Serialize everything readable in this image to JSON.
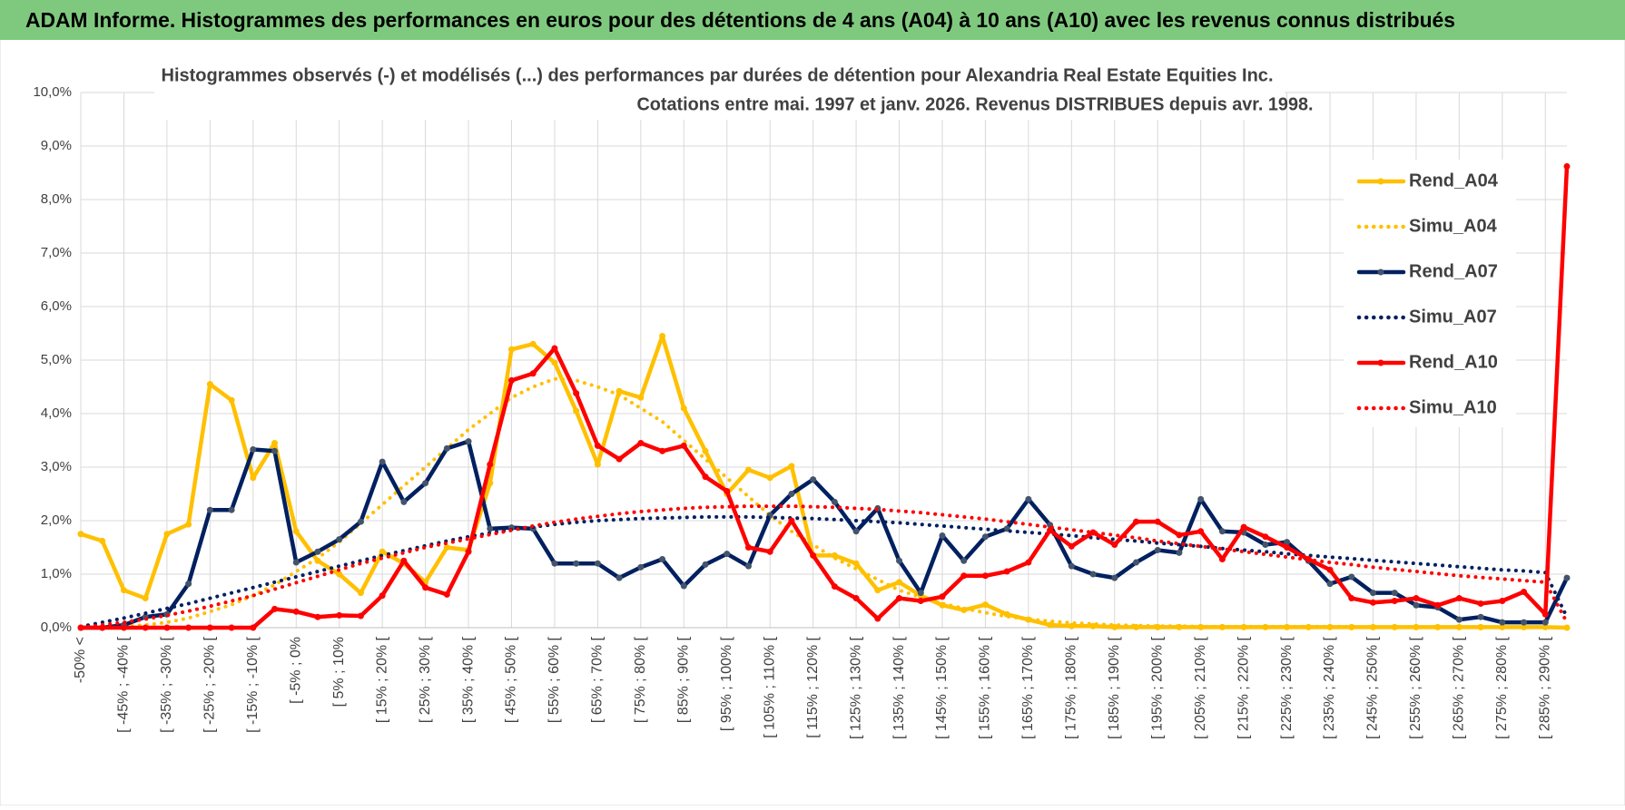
{
  "header": {
    "title": "ADAM Informe. Histogrammes des performances en euros pour des détentions de 4 ans (A04) à 10 ans (A10) avec les revenus connus distribués"
  },
  "chart_data": {
    "type": "line",
    "title": "Histogrammes observés (-) et modélisés (...) des performances par durées de détention pour Alexandria Real Estate Equities Inc.",
    "subtitle": "Cotations entre mai. 1997 et janv. 2026. Revenus DISTRIBUES depuis avr. 1998.",
    "categories": [
      "-50% <",
      null,
      "[ -45% ; -40% [",
      null,
      "[ -35% ; -30% [",
      null,
      "[ -25% ; -20% [",
      null,
      "[ -15% ; -10% [",
      null,
      "[ -5% ; 0%",
      null,
      "[ 5% ; 10%",
      null,
      "[ 15% ; 20% [",
      null,
      "[ 25% ; 30% [",
      null,
      "[ 35% ; 40% [",
      null,
      "[ 45% ; 50% [",
      null,
      "[ 55% ; 60% [",
      null,
      "[ 65% ; 70% [",
      null,
      "[ 75% ; 80% [",
      null,
      "[ 85% ; 90% [",
      null,
      "[ 95% ; 100% [",
      null,
      "[ 105% ; 110% [",
      null,
      "[ 115% ; 120% [",
      null,
      "[ 125% ; 130% [",
      null,
      "[ 135% ; 140% [",
      null,
      "[ 145% ; 150% [",
      null,
      "[ 155% ; 160% [",
      null,
      "[ 165% ; 170% [",
      null,
      "[ 175% ; 180% [",
      null,
      "[ 185% ; 190% [",
      null,
      "[ 195% ; 200% [",
      null,
      "[ 205% ; 210% [",
      null,
      "[ 215% ; 220% [",
      null,
      "[ 225% ; 230% [",
      null,
      "[ 235% ; 240% [",
      null,
      "[ 245% ; 250% [",
      null,
      "[ 255% ; 260% [",
      null,
      "[ 265% ; 270% [",
      null,
      "[ 275% ; 280% [",
      null,
      "[ 285% ; 290% [",
      null
    ],
    "series": [
      {
        "name": "Rend_A04",
        "color": "#ffc000",
        "dash": false,
        "marker": true,
        "values": [
          1.75,
          1.62,
          0.7,
          0.55,
          1.75,
          1.93,
          4.55,
          4.25,
          2.8,
          3.45,
          1.8,
          1.25,
          1.0,
          0.65,
          1.42,
          1.2,
          0.85,
          1.5,
          1.45,
          2.7,
          5.2,
          5.3,
          4.95,
          4.05,
          3.05,
          4.42,
          4.3,
          5.45,
          4.1,
          3.3,
          2.5,
          2.95,
          2.8,
          3.02,
          1.35,
          1.35,
          1.2,
          0.7,
          0.85,
          0.6,
          0.42,
          0.33,
          0.43,
          0.25,
          0.15,
          0.05,
          0.03,
          0.03,
          0.01,
          0.01,
          0.01,
          0.01,
          0.01,
          0.01,
          0.01,
          0.01,
          0.01,
          0.01,
          0.01,
          0.01,
          0.01,
          0.01,
          0.01,
          0.01,
          0.01,
          0.01,
          0.01,
          0.01,
          0.01,
          0.0
        ]
      },
      {
        "name": "Simu_A04",
        "color": "#ffc000",
        "dash": true,
        "marker": false,
        "values": [
          0.0,
          0.01,
          0.02,
          0.05,
          0.1,
          0.18,
          0.3,
          0.43,
          0.6,
          0.8,
          1.05,
          1.3,
          1.6,
          1.95,
          2.3,
          2.65,
          3.0,
          3.35,
          3.7,
          4.0,
          4.3,
          4.5,
          4.65,
          4.62,
          4.5,
          4.35,
          4.1,
          3.85,
          3.5,
          3.15,
          2.8,
          2.45,
          2.1,
          1.8,
          1.55,
          1.3,
          1.1,
          0.9,
          0.7,
          0.57,
          0.45,
          0.36,
          0.28,
          0.21,
          0.16,
          0.12,
          0.09,
          0.07,
          0.05,
          0.04,
          0.03,
          0.03,
          0.02,
          0.02,
          0.02,
          0.02,
          0.02,
          0.02,
          0.02,
          0.02,
          0.01,
          0.01,
          0.01,
          0.01,
          0.01,
          0.01,
          0.01,
          0.01,
          0.01,
          0.0
        ]
      },
      {
        "name": "Rend_A07",
        "color": "#002060",
        "dash": false,
        "marker": true,
        "values": [
          0,
          0,
          0.05,
          0.2,
          0.25,
          0.82,
          2.2,
          2.2,
          3.33,
          3.3,
          1.22,
          1.42,
          1.65,
          1.98,
          3.1,
          2.35,
          2.7,
          3.35,
          3.48,
          1.85,
          1.87,
          1.85,
          1.2,
          1.2,
          1.2,
          0.93,
          1.13,
          1.28,
          0.78,
          1.18,
          1.38,
          1.15,
          2.1,
          2.5,
          2.77,
          2.35,
          1.8,
          2.23,
          1.25,
          0.65,
          1.72,
          1.25,
          1.7,
          1.85,
          2.4,
          1.92,
          1.15,
          1.0,
          0.93,
          1.22,
          1.45,
          1.4,
          2.4,
          1.8,
          1.78,
          1.55,
          1.6,
          1.25,
          0.82,
          0.95,
          0.65,
          0.65,
          0.42,
          0.38,
          0.15,
          0.2,
          0.1,
          0.1,
          0.1,
          0.93
        ]
      },
      {
        "name": "Simu_A07",
        "color": "#002060",
        "dash": true,
        "marker": false,
        "values": [
          0.02,
          0.1,
          0.18,
          0.27,
          0.36,
          0.45,
          0.55,
          0.65,
          0.75,
          0.85,
          0.95,
          1.05,
          1.15,
          1.25,
          1.35,
          1.44,
          1.53,
          1.62,
          1.7,
          1.77,
          1.83,
          1.88,
          1.93,
          1.97,
          2.0,
          2.02,
          2.04,
          2.05,
          2.06,
          2.07,
          2.07,
          2.07,
          2.06,
          2.05,
          2.04,
          2.02,
          2.0,
          1.98,
          1.96,
          1.93,
          1.9,
          1.87,
          1.84,
          1.81,
          1.78,
          1.75,
          1.72,
          1.68,
          1.65,
          1.62,
          1.58,
          1.55,
          1.52,
          1.48,
          1.45,
          1.42,
          1.38,
          1.35,
          1.32,
          1.29,
          1.26,
          1.23,
          1.2,
          1.17,
          1.14,
          1.11,
          1.08,
          1.06,
          1.03,
          0.2
        ]
      },
      {
        "name": "Rend_A10",
        "color": "#ff0000",
        "dash": false,
        "marker": true,
        "values": [
          0,
          0,
          0,
          0,
          0,
          0,
          0,
          0,
          0,
          0.35,
          0.3,
          0.2,
          0.23,
          0.22,
          0.6,
          1.25,
          0.75,
          0.62,
          1.42,
          3.05,
          4.62,
          4.75,
          5.22,
          4.38,
          3.4,
          3.15,
          3.45,
          3.3,
          3.4,
          2.82,
          2.55,
          1.5,
          1.42,
          2.0,
          1.35,
          0.77,
          0.55,
          0.17,
          0.55,
          0.5,
          0.58,
          0.97,
          0.97,
          1.05,
          1.22,
          1.82,
          1.52,
          1.78,
          1.55,
          1.98,
          1.98,
          1.73,
          1.8,
          1.28,
          1.88,
          1.7,
          1.5,
          1.28,
          1.08,
          0.55,
          0.47,
          0.5,
          0.55,
          0.42,
          0.55,
          0.45,
          0.5,
          0.67,
          0.25,
          8.62
        ]
      },
      {
        "name": "Simu_A10",
        "color": "#ff0000",
        "dash": true,
        "marker": false,
        "values": [
          0.0,
          0.05,
          0.1,
          0.16,
          0.23,
          0.31,
          0.4,
          0.5,
          0.6,
          0.72,
          0.84,
          0.96,
          1.08,
          1.2,
          1.3,
          1.4,
          1.5,
          1.58,
          1.66,
          1.74,
          1.82,
          1.9,
          1.97,
          2.03,
          2.08,
          2.13,
          2.17,
          2.2,
          2.23,
          2.25,
          2.26,
          2.27,
          2.27,
          2.27,
          2.26,
          2.25,
          2.23,
          2.21,
          2.18,
          2.15,
          2.11,
          2.07,
          2.03,
          1.98,
          1.93,
          1.88,
          1.83,
          1.78,
          1.73,
          1.68,
          1.62,
          1.57,
          1.52,
          1.47,
          1.42,
          1.37,
          1.32,
          1.27,
          1.22,
          1.18,
          1.13,
          1.09,
          1.05,
          1.01,
          0.97,
          0.94,
          0.91,
          0.88,
          0.85,
          0.1
        ]
      }
    ],
    "ylim": [
      0,
      10
    ],
    "yticks": [
      {
        "value": 0,
        "label": "0,0%"
      },
      {
        "value": 1,
        "label": "1,0%"
      },
      {
        "value": 2,
        "label": "2,0%"
      },
      {
        "value": 3,
        "label": "3,0%"
      },
      {
        "value": 4,
        "label": "4,0%"
      },
      {
        "value": 5,
        "label": "5,0%"
      },
      {
        "value": 6,
        "label": "6,0%"
      },
      {
        "value": 7,
        "label": "7,0%"
      },
      {
        "value": 8,
        "label": "8,0%"
      },
      {
        "value": 9,
        "label": "9,0%"
      },
      {
        "value": 10,
        "label": "10,0%"
      }
    ],
    "grid": true,
    "legend": "right"
  }
}
